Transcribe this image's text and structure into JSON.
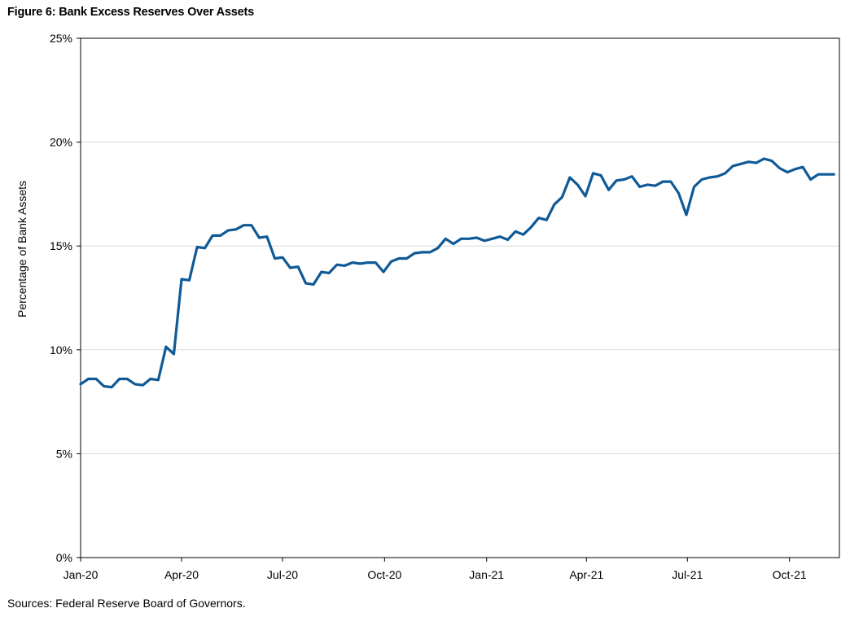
{
  "figure_title": "Figure 6: Bank Excess Reserves Over Assets",
  "source_note": "Sources: Federal Reserve Board of Governors.",
  "colors": {
    "line": "#0f5a96",
    "grid": "#d9d9d9",
    "axis": "#000000"
  },
  "chart_data": {
    "type": "line",
    "title": "Figure 6: Bank Excess Reserves Over Assets",
    "xlabel": "",
    "ylabel": "Percentage of Bank Assets",
    "ylim": [
      0,
      25
    ],
    "xlim": [
      "2020-01-01",
      "2021-11-15"
    ],
    "y_ticks": [
      0,
      5,
      10,
      15,
      20,
      25
    ],
    "y_tick_labels": [
      "0%",
      "5%",
      "10%",
      "15%",
      "20%",
      "25%"
    ],
    "x_ticks": [
      {
        "date": "2020-01-01",
        "label": "Jan-20"
      },
      {
        "date": "2020-04-01",
        "label": "Apr-20"
      },
      {
        "date": "2020-07-01",
        "label": "Jul-20"
      },
      {
        "date": "2020-10-01",
        "label": "Oct-20"
      },
      {
        "date": "2021-01-01",
        "label": "Jan-21"
      },
      {
        "date": "2021-04-01",
        "label": "Apr-21"
      },
      {
        "date": "2021-07-01",
        "label": "Jul-21"
      },
      {
        "date": "2021-10-01",
        "label": "Oct-21"
      }
    ],
    "grid": true,
    "series": [
      {
        "name": "",
        "x": [
          "2020-01-01",
          "2020-01-08",
          "2020-01-15",
          "2020-01-22",
          "2020-01-29",
          "2020-02-05",
          "2020-02-12",
          "2020-02-19",
          "2020-02-26",
          "2020-03-04",
          "2020-03-11",
          "2020-03-18",
          "2020-03-25",
          "2020-04-01",
          "2020-04-08",
          "2020-04-15",
          "2020-04-22",
          "2020-04-29",
          "2020-05-06",
          "2020-05-13",
          "2020-05-20",
          "2020-05-27",
          "2020-06-03",
          "2020-06-10",
          "2020-06-17",
          "2020-06-24",
          "2020-07-01",
          "2020-07-08",
          "2020-07-15",
          "2020-07-22",
          "2020-07-29",
          "2020-08-05",
          "2020-08-12",
          "2020-08-19",
          "2020-08-26",
          "2020-09-02",
          "2020-09-09",
          "2020-09-16",
          "2020-09-23",
          "2020-09-30",
          "2020-10-07",
          "2020-10-14",
          "2020-10-21",
          "2020-10-28",
          "2020-11-04",
          "2020-11-11",
          "2020-11-18",
          "2020-11-25",
          "2020-12-02",
          "2020-12-09",
          "2020-12-16",
          "2020-12-23",
          "2020-12-30",
          "2021-01-06",
          "2021-01-13",
          "2021-01-20",
          "2021-01-27",
          "2021-02-03",
          "2021-02-10",
          "2021-02-17",
          "2021-02-24",
          "2021-03-03",
          "2021-03-10",
          "2021-03-17",
          "2021-03-24",
          "2021-03-31",
          "2021-04-07",
          "2021-04-14",
          "2021-04-21",
          "2021-04-28",
          "2021-05-05",
          "2021-05-12",
          "2021-05-19",
          "2021-05-26",
          "2021-06-02",
          "2021-06-09",
          "2021-06-16",
          "2021-06-23",
          "2021-06-30",
          "2021-07-07",
          "2021-07-14",
          "2021-07-21",
          "2021-07-28",
          "2021-08-04",
          "2021-08-11",
          "2021-08-18",
          "2021-08-25",
          "2021-09-01",
          "2021-09-08",
          "2021-09-15",
          "2021-09-22",
          "2021-09-29",
          "2021-10-06",
          "2021-10-13",
          "2021-10-20",
          "2021-10-27",
          "2021-11-03",
          "2021-11-10"
        ],
        "y": [
          8.35,
          8.6,
          8.6,
          8.25,
          8.2,
          8.6,
          8.6,
          8.35,
          8.3,
          8.6,
          8.55,
          10.15,
          9.8,
          13.4,
          13.35,
          14.95,
          14.9,
          15.5,
          15.5,
          15.75,
          15.8,
          16.0,
          16.0,
          15.4,
          15.45,
          14.4,
          14.45,
          13.95,
          14.0,
          13.2,
          13.15,
          13.75,
          13.7,
          14.1,
          14.05,
          14.2,
          14.15,
          14.2,
          14.2,
          13.75,
          14.25,
          14.4,
          14.4,
          14.65,
          14.7,
          14.7,
          14.9,
          15.35,
          15.1,
          15.35,
          15.35,
          15.4,
          15.25,
          15.35,
          15.45,
          15.3,
          15.7,
          15.55,
          15.9,
          16.35,
          16.25,
          17.0,
          17.35,
          18.3,
          17.95,
          17.4,
          18.5,
          18.4,
          17.7,
          18.15,
          18.2,
          18.35,
          17.85,
          17.95,
          17.9,
          18.1,
          18.1,
          17.55,
          16.5,
          17.85,
          18.2,
          18.3,
          18.35,
          18.5,
          18.85,
          18.95,
          19.05,
          19.0,
          19.2,
          19.1,
          18.75,
          18.55,
          18.7,
          18.8,
          18.2,
          18.45,
          18.45,
          18.45
        ]
      }
    ]
  }
}
